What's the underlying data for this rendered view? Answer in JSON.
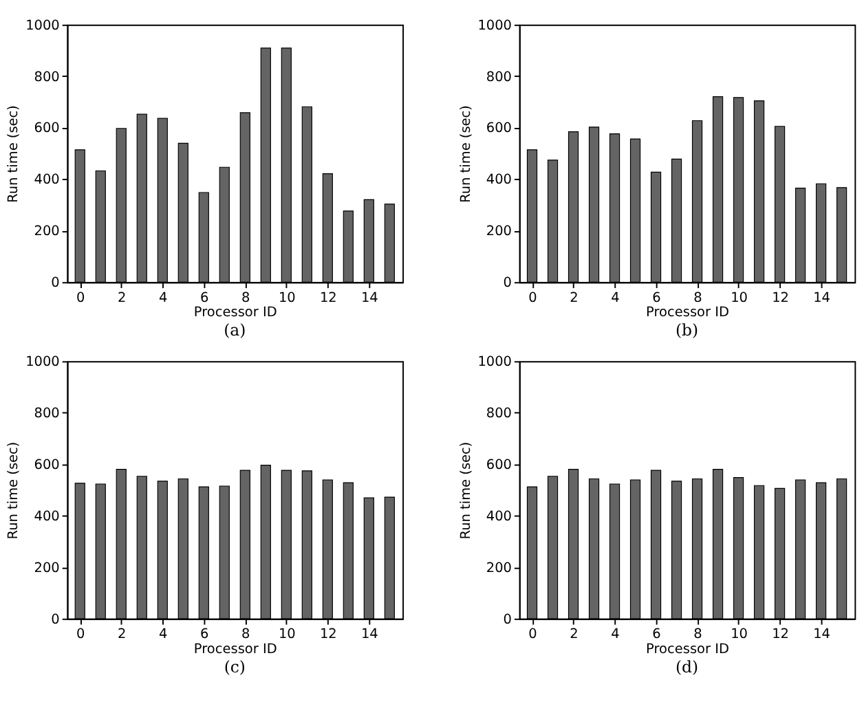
{
  "chart_data": [
    {
      "type": "bar",
      "title": "(a)",
      "xlabel": "Processor ID",
      "ylabel": "Run time (sec)",
      "x": [
        0,
        1,
        2,
        3,
        4,
        5,
        6,
        7,
        8,
        9,
        10,
        11,
        12,
        13,
        14,
        15
      ],
      "color": "#646464",
      "xlim": [
        -0.3,
        15.3
      ],
      "xticks": [
        0,
        2,
        4,
        6,
        8,
        10,
        12,
        14
      ],
      "ylim": [
        0,
        1000
      ],
      "yticks": [
        0,
        200,
        400,
        600,
        800,
        1000
      ],
      "grid": false,
      "values": [
        514,
        432,
        597,
        652,
        636,
        539,
        348,
        446,
        658,
        909,
        909,
        681,
        421,
        276,
        320,
        303
      ]
    },
    {
      "type": "bar",
      "title": "(b)",
      "xlabel": "Processor ID",
      "ylabel": "Run time (sec)",
      "x": [
        0,
        1,
        2,
        3,
        4,
        5,
        6,
        7,
        8,
        9,
        10,
        11,
        12,
        13,
        14,
        15
      ],
      "color": "#646464",
      "xlim": [
        -0.3,
        15.3
      ],
      "xticks": [
        0,
        2,
        4,
        6,
        8,
        10,
        12,
        14
      ],
      "ylim": [
        0,
        1000
      ],
      "yticks": [
        0,
        200,
        400,
        600,
        800,
        1000
      ],
      "grid": false,
      "values": [
        514,
        474,
        584,
        602,
        576,
        556,
        427,
        478,
        627,
        720,
        717,
        704,
        605,
        365,
        382,
        367
      ]
    },
    {
      "type": "bar",
      "title": "(c)",
      "xlabel": "Processor ID",
      "ylabel": "Run time (sec)",
      "x": [
        0,
        1,
        2,
        3,
        4,
        5,
        6,
        7,
        8,
        9,
        10,
        11,
        12,
        13,
        14,
        15
      ],
      "color": "#646464",
      "xlim": [
        -0.3,
        15.3
      ],
      "xticks": [
        0,
        2,
        4,
        6,
        8,
        10,
        12,
        14
      ],
      "ylim": [
        0,
        1000
      ],
      "yticks": [
        0,
        200,
        400,
        600,
        800,
        1000
      ],
      "grid": false,
      "values": [
        526,
        523,
        580,
        553,
        534,
        543,
        512,
        515,
        576,
        596,
        576,
        574,
        539,
        528,
        469,
        472
      ]
    },
    {
      "type": "bar",
      "title": "(d)",
      "xlabel": "Processor ID",
      "ylabel": "Run time (sec)",
      "x": [
        0,
        1,
        2,
        3,
        4,
        5,
        6,
        7,
        8,
        9,
        10,
        11,
        12,
        13,
        14,
        15
      ],
      "color": "#646464",
      "xlim": [
        -0.3,
        15.3
      ],
      "xticks": [
        0,
        2,
        4,
        6,
        8,
        10,
        12,
        14
      ],
      "ylim": [
        0,
        1000
      ],
      "yticks": [
        0,
        200,
        400,
        600,
        800,
        1000
      ],
      "grid": false,
      "values": [
        512,
        553,
        580,
        543,
        523,
        539,
        576,
        534,
        543,
        580,
        548,
        517,
        506,
        539,
        528,
        543
      ]
    }
  ]
}
